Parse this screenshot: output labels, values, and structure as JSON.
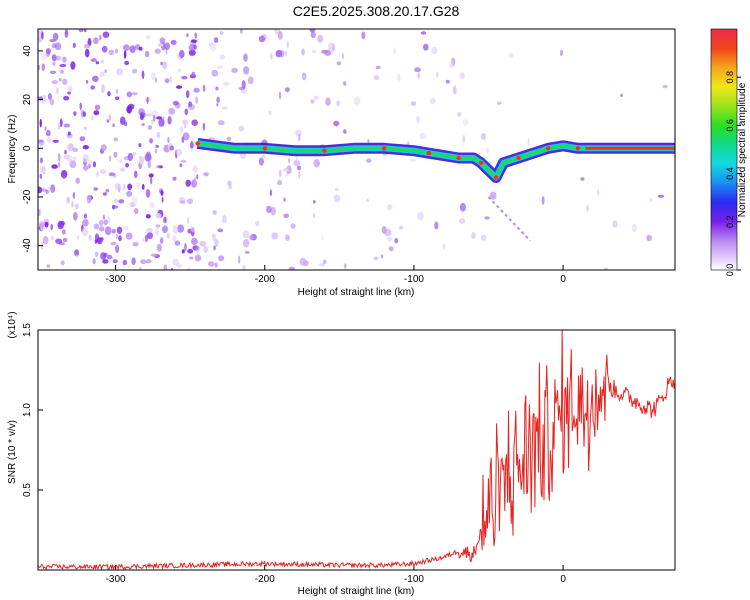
{
  "figure": {
    "title": "C2E5.2025.308.20.17.G28"
  },
  "colors": {
    "spectro_trace": "#ff2a1a",
    "snr_line": "#e8231f",
    "axes": "#000000"
  },
  "chart_data": [
    {
      "type": "heatmap",
      "title": "C2E5.2025.308.20.17.G28",
      "xlabel": "Height of straight line (km)",
      "ylabel": "Frequency (Hz)",
      "xlim": [
        -352,
        75
      ],
      "ylim": [
        -50,
        49
      ],
      "xticks": [
        -300,
        -200,
        -100,
        0
      ],
      "yticks": [
        -40,
        -20,
        0,
        20,
        40
      ],
      "colorbar": {
        "label": "Normalized spectral amplitude",
        "range": [
          0,
          1
        ],
        "ticks": [
          "0.0",
          "0.2",
          "0.4",
          "0.6",
          "0.8"
        ],
        "colormap": "rainbow"
      },
      "trace": {
        "x": [
          -245,
          -220,
          -200,
          -180,
          -160,
          -140,
          -120,
          -100,
          -90,
          -80,
          -70,
          -60,
          -55,
          -50,
          -45,
          -40,
          -30,
          -20,
          -10,
          0,
          10,
          20,
          40,
          60,
          75
        ],
        "y": [
          2,
          0,
          0,
          -1,
          -1,
          0,
          0,
          -1,
          -2,
          -3,
          -4,
          -4,
          -6,
          -9,
          -12,
          -6,
          -4,
          -2,
          0,
          1,
          0,
          0,
          0,
          0,
          0
        ]
      }
    },
    {
      "type": "line",
      "xlabel": "Height of straight line (km)",
      "ylabel": "SNR (10 * v/v)",
      "y_multiplier": "(x10⁴)",
      "xlim": [
        -352,
        75
      ],
      "ylim": [
        0,
        1.5
      ],
      "xticks": [
        -300,
        -200,
        -100,
        0
      ],
      "yticks": [
        "0.5",
        "1.0",
        "1.5"
      ],
      "series": [
        {
          "x": [
            -352,
            -300,
            -250,
            -200,
            -150,
            -120,
            -100,
            -90,
            -80,
            -70,
            -60,
            -55,
            -50,
            -45,
            -40,
            -35,
            -30,
            -25,
            -20,
            -15,
            -10,
            -5,
            0,
            5,
            10,
            15,
            20,
            25,
            30,
            40,
            50,
            60,
            65,
            70,
            75
          ],
          "y": [
            0.02,
            0.02,
            0.03,
            0.04,
            0.03,
            0.03,
            0.04,
            0.06,
            0.08,
            0.12,
            0.1,
            0.25,
            0.35,
            0.45,
            0.55,
            0.6,
            0.65,
            0.7,
            0.8,
            0.8,
            0.85,
            0.9,
            1.0,
            1.05,
            1.05,
            1.05,
            1.1,
            1.15,
            1.15,
            1.1,
            1.05,
            1.0,
            1.05,
            1.15,
            1.2
          ]
        }
      ]
    }
  ]
}
